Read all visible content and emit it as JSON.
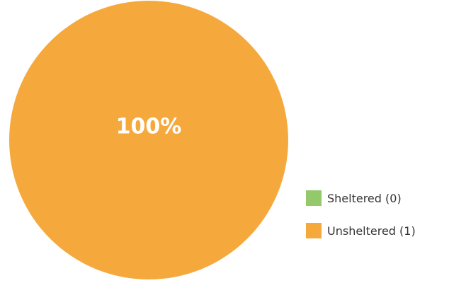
{
  "chart_data": {
    "type": "pie",
    "title": "",
    "categories": [
      "Sheltered",
      "Unsheltered"
    ],
    "values": [
      0,
      1
    ],
    "colors": [
      "#93c96a",
      "#f5a93c"
    ],
    "data_labels": [
      "",
      "100%"
    ],
    "legend_placement": "bottom-right",
    "legend": {
      "entries": [
        {
          "label": "Sheltered (0)",
          "color": "#93c96a"
        },
        {
          "label": "Unsheltered (1)",
          "color": "#f5a93c"
        }
      ]
    }
  }
}
